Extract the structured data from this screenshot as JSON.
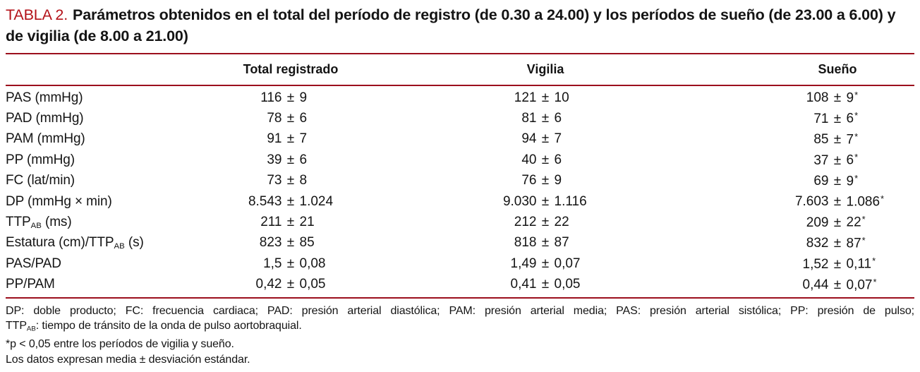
{
  "colors": {
    "accent_red": "#b31118",
    "rule_red": "#9c0f1d",
    "text": "#141414",
    "background": "#ffffff"
  },
  "title": {
    "label": "TABLA 2.",
    "text": "Parámetros obtenidos en el total del período de registro (de 0.30 a 24.00) y los períodos de sueño (de 23.00 a 6.00) y de vigilia (de 8.00 a 21.00)"
  },
  "table": {
    "pm": "±",
    "star": "*",
    "columns": [
      "Total registrado",
      "Vigilia",
      "Sueño"
    ],
    "rows": [
      {
        "label": [
          {
            "t": "PAS (mmHg)"
          }
        ],
        "values": [
          {
            "m": "116",
            "s": "9"
          },
          {
            "m": "121",
            "s": "10"
          },
          {
            "m": "108",
            "s": "9",
            "star": true
          }
        ]
      },
      {
        "label": [
          {
            "t": "PAD (mmHg)"
          }
        ],
        "values": [
          {
            "m": "78",
            "s": "6"
          },
          {
            "m": "81",
            "s": "6"
          },
          {
            "m": "71",
            "s": "6",
            "star": true
          }
        ]
      },
      {
        "label": [
          {
            "t": "PAM (mmHg)"
          }
        ],
        "values": [
          {
            "m": "91",
            "s": "7"
          },
          {
            "m": "94",
            "s": "7"
          },
          {
            "m": "85",
            "s": "7",
            "star": true
          }
        ]
      },
      {
        "label": [
          {
            "t": "PP (mmHg)"
          }
        ],
        "values": [
          {
            "m": "39",
            "s": "6"
          },
          {
            "m": "40",
            "s": "6"
          },
          {
            "m": "37",
            "s": "6",
            "star": true
          }
        ]
      },
      {
        "label": [
          {
            "t": "FC (lat/min)"
          }
        ],
        "values": [
          {
            "m": "73",
            "s": "8"
          },
          {
            "m": "76",
            "s": "9"
          },
          {
            "m": "69",
            "s": "9",
            "star": true
          }
        ]
      },
      {
        "label": [
          {
            "t": "DP (mmHg × min)"
          }
        ],
        "values": [
          {
            "m": "8.543",
            "s": "1.024"
          },
          {
            "m": "9.030",
            "s": "1.116"
          },
          {
            "m": "7.603",
            "s": "1.086",
            "star": true
          }
        ]
      },
      {
        "label": [
          {
            "t": "TTP"
          },
          {
            "sub": "AB"
          },
          {
            "t": " (ms)"
          }
        ],
        "values": [
          {
            "m": "211",
            "s": "21"
          },
          {
            "m": "212",
            "s": "22"
          },
          {
            "m": "209",
            "s": "22",
            "star": true
          }
        ]
      },
      {
        "label": [
          {
            "t": "Estatura (cm)/TTP"
          },
          {
            "sub": "AB"
          },
          {
            "t": " (s)"
          }
        ],
        "values": [
          {
            "m": "823",
            "s": "85"
          },
          {
            "m": "818",
            "s": "87"
          },
          {
            "m": "832",
            "s": "87",
            "star": true
          }
        ]
      },
      {
        "label": [
          {
            "t": "PAS/PAD"
          }
        ],
        "values": [
          {
            "m": "1,5",
            "s": "0,08"
          },
          {
            "m": "1,49",
            "s": "0,07"
          },
          {
            "m": "1,52",
            "s": "0,11",
            "star": true
          }
        ]
      },
      {
        "label": [
          {
            "t": "PP/PAM"
          }
        ],
        "values": [
          {
            "m": "0,42",
            "s": "0,05"
          },
          {
            "m": "0,41",
            "s": "0,05"
          },
          {
            "m": "0,44",
            "s": "0,07",
            "star": true
          }
        ]
      }
    ]
  },
  "footnotes": [
    {
      "stretch": true,
      "parts": [
        {
          "t": "DP: doble producto; FC: frecuencia cardiaca; PAD: presión arterial diastólica; PAM: presión arterial media; PAS: presión arterial sistólica; PP: presión de pulso;"
        }
      ]
    },
    {
      "parts": [
        {
          "t": "TTP"
        },
        {
          "sub": "AB"
        },
        {
          "t": ": tiempo de tránsito de la onda de pulso aortobraquial."
        }
      ]
    },
    {
      "parts": [
        {
          "t": "*p < 0,05 entre los períodos de vigilia y sueño."
        }
      ]
    },
    {
      "parts": [
        {
          "t": "Los datos expresan media ± desviación estándar."
        }
      ]
    }
  ]
}
